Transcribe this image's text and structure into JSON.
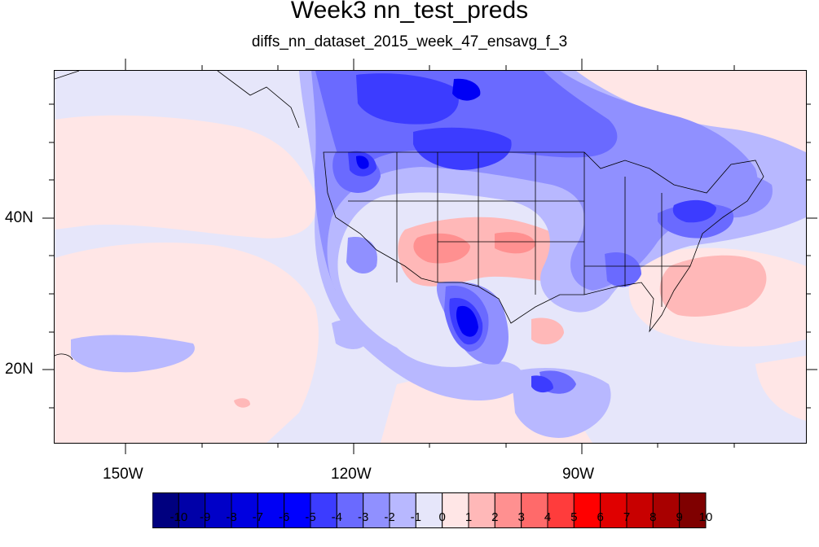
{
  "title": "Week3 nn_test_preds",
  "subtitle": "diffs_nn_dataset_2015_week_47_ensavg_f_3",
  "x_ticks": [
    {
      "label": "150W"
    },
    {
      "label": "120W"
    },
    {
      "label": "90W"
    }
  ],
  "y_ticks": [
    {
      "label": "40N"
    },
    {
      "label": "20N"
    }
  ],
  "colorbar": {
    "labels": [
      "-10",
      "-9",
      "-8",
      "-7",
      "-6",
      "-5",
      "-4",
      "-3",
      "-2",
      "-1",
      "0",
      "1",
      "2",
      "3",
      "4",
      "5",
      "6",
      "7",
      "8",
      "9",
      "10"
    ],
    "colors": [
      "#00007f",
      "#0000a8",
      "#0000c8",
      "#0000e0",
      "#0000f5",
      "#0000ff",
      "#3c3cff",
      "#6a6aff",
      "#9090ff",
      "#b8b8ff",
      "#e6e6fa",
      "#ffe6e6",
      "#ffb8b8",
      "#ff9090",
      "#ff6a6a",
      "#ff3c3c",
      "#ff0000",
      "#e00000",
      "#c80000",
      "#a80000",
      "#7f0000"
    ]
  },
  "palette": {
    "background": "#e6e6fa",
    "light_blue": "#b8b8ff",
    "mid_blue": "#9090ff",
    "blue": "#6a6aff",
    "strong_blue": "#3c3cff",
    "dark_blue": "#0000f5",
    "light_pink": "#ffe6e6",
    "pink": "#ffb8b8",
    "salmon": "#ff9090",
    "red": "#ff6a6a"
  }
}
